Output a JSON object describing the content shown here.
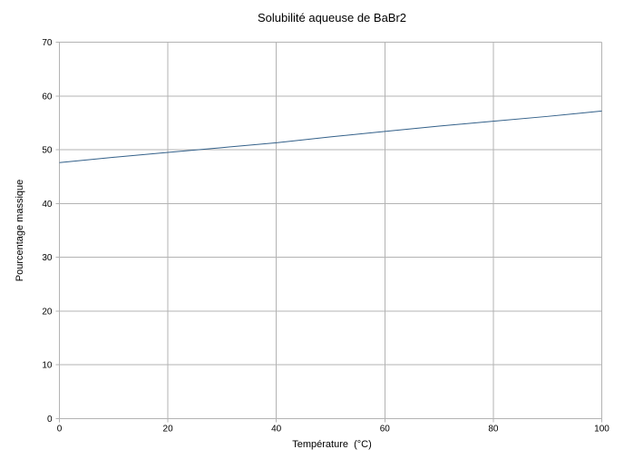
{
  "chart_data": {
    "type": "line",
    "title": "Solubilité aqueuse de BaBr2",
    "xlabel": "Température  (°C)",
    "ylabel": "Pourcentage massique",
    "x": [
      0,
      10,
      20,
      30,
      40,
      50,
      60,
      70,
      80,
      90,
      100
    ],
    "series": [
      {
        "name": "BaBr2",
        "values": [
          47.6,
          48.6,
          49.5,
          50.4,
          51.3,
          52.4,
          53.4,
          54.4,
          55.3,
          56.2,
          57.2
        ]
      }
    ],
    "xlim": [
      0,
      100
    ],
    "ylim": [
      0,
      70
    ],
    "xticks": [
      0,
      20,
      40,
      60,
      80,
      100
    ],
    "yticks": [
      0,
      10,
      20,
      30,
      40,
      50,
      60,
      70
    ],
    "grid": true,
    "legend": false,
    "colors": {
      "line": "#336089",
      "grid": "#b3b3b3",
      "axis": "#b3b3b3",
      "text": "#000000",
      "background": "#ffffff"
    }
  }
}
